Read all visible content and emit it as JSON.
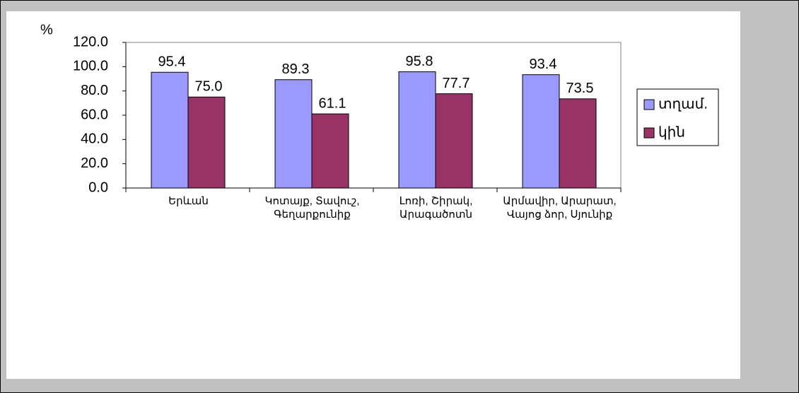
{
  "chart_data": {
    "type": "bar",
    "y_label": "%",
    "categories": [
      "Երևան",
      "Կոտայք, Տավուշ,\nԳեղարքունիք",
      "Լոռի, Շիրակ,\nԱրագածոտն",
      "Արմավիր, Արարատ,\nՎայոց ձոր, Սյունիք"
    ],
    "series": [
      {
        "name": "տղամ.",
        "color": "#9999ff",
        "values": [
          95.4,
          89.3,
          95.8,
          93.4
        ],
        "value_labels": [
          "95.4",
          "89.3",
          "95.8",
          "93.4"
        ]
      },
      {
        "name": "կին",
        "color": "#993366",
        "values": [
          75,
          61.1,
          77.7,
          73.5
        ],
        "value_labels": [
          "75.0",
          "61.1",
          "77.7",
          "73.5"
        ]
      }
    ],
    "ylim": [
      0,
      120
    ],
    "yticks": [
      {
        "value": 0,
        "label": "0.0"
      },
      {
        "value": 20,
        "label": "20.0"
      },
      {
        "value": 40,
        "label": "40.0"
      },
      {
        "value": 60,
        "label": "60.0"
      },
      {
        "value": 80,
        "label": "80.0"
      },
      {
        "value": 100,
        "label": "100.0"
      },
      {
        "value": 120,
        "label": "120.0"
      }
    ],
    "grid": false,
    "legend": "right"
  }
}
